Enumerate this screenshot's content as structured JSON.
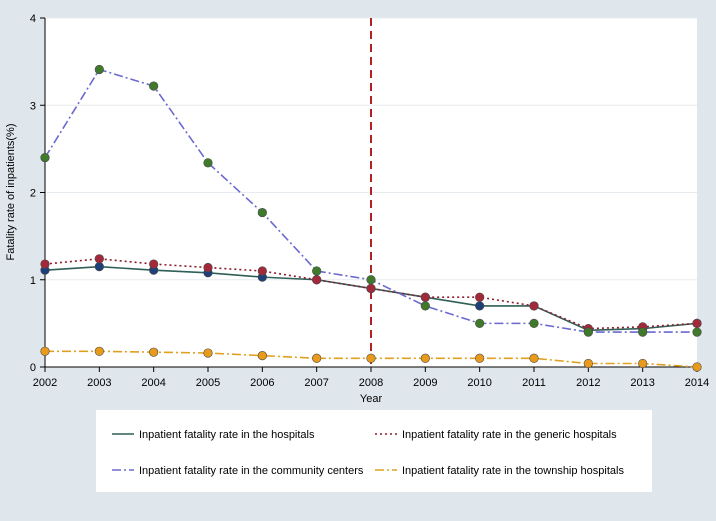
{
  "chart_data": {
    "type": "line",
    "title": "",
    "xlabel": "Year",
    "ylabel": "Fatality rate of inpatients(%)",
    "xlim": [
      2002,
      2014
    ],
    "ylim": [
      0,
      4
    ],
    "x_ticks": [
      "2002",
      "2003",
      "2004",
      "2005",
      "2006",
      "2007",
      "2008",
      "2009",
      "2010",
      "2011",
      "2012",
      "2013",
      "2014"
    ],
    "y_ticks": [
      "0",
      "1",
      "2",
      "3",
      "4"
    ],
    "grid": true,
    "reference_line": {
      "x": 2008,
      "color": "#b22222"
    },
    "x": [
      2002,
      2003,
      2004,
      2005,
      2006,
      2007,
      2008,
      2009,
      2010,
      2011,
      2012,
      2013,
      2014
    ],
    "series": [
      {
        "name": "Inpatient fatality rate in the hospitals",
        "color": "#2f5f56",
        "marker_color": "#1f3f78",
        "dash": "solid",
        "values": [
          1.11,
          1.15,
          1.11,
          1.08,
          1.03,
          1.0,
          0.9,
          0.8,
          0.7,
          0.7,
          0.42,
          0.44,
          0.5
        ]
      },
      {
        "name": "Inpatient fatality rate in the generic hospitals",
        "color": "#8b1c2c",
        "marker_color": "#a3283a",
        "dash": "dot",
        "values": [
          1.18,
          1.24,
          1.18,
          1.14,
          1.1,
          1.0,
          0.9,
          0.8,
          0.8,
          0.7,
          0.44,
          0.46,
          0.5
        ]
      },
      {
        "name": "Inpatient fatality rate in the community centers",
        "color": "#6a6ad0",
        "marker_color": "#3f7a2a",
        "dash": "dashdot",
        "values": [
          2.4,
          3.41,
          3.22,
          2.34,
          1.77,
          1.1,
          1.0,
          0.7,
          0.5,
          0.5,
          0.4,
          0.4,
          0.4
        ]
      },
      {
        "name": "Inpatient fatality rate in the township hospitals",
        "color": "#e0a020",
        "marker_color": "#e89a1a",
        "dash": "dashdot",
        "values": [
          0.18,
          0.18,
          0.17,
          0.16,
          0.13,
          0.1,
          0.1,
          0.1,
          0.1,
          0.1,
          0.04,
          0.04,
          0.0
        ]
      }
    ]
  }
}
